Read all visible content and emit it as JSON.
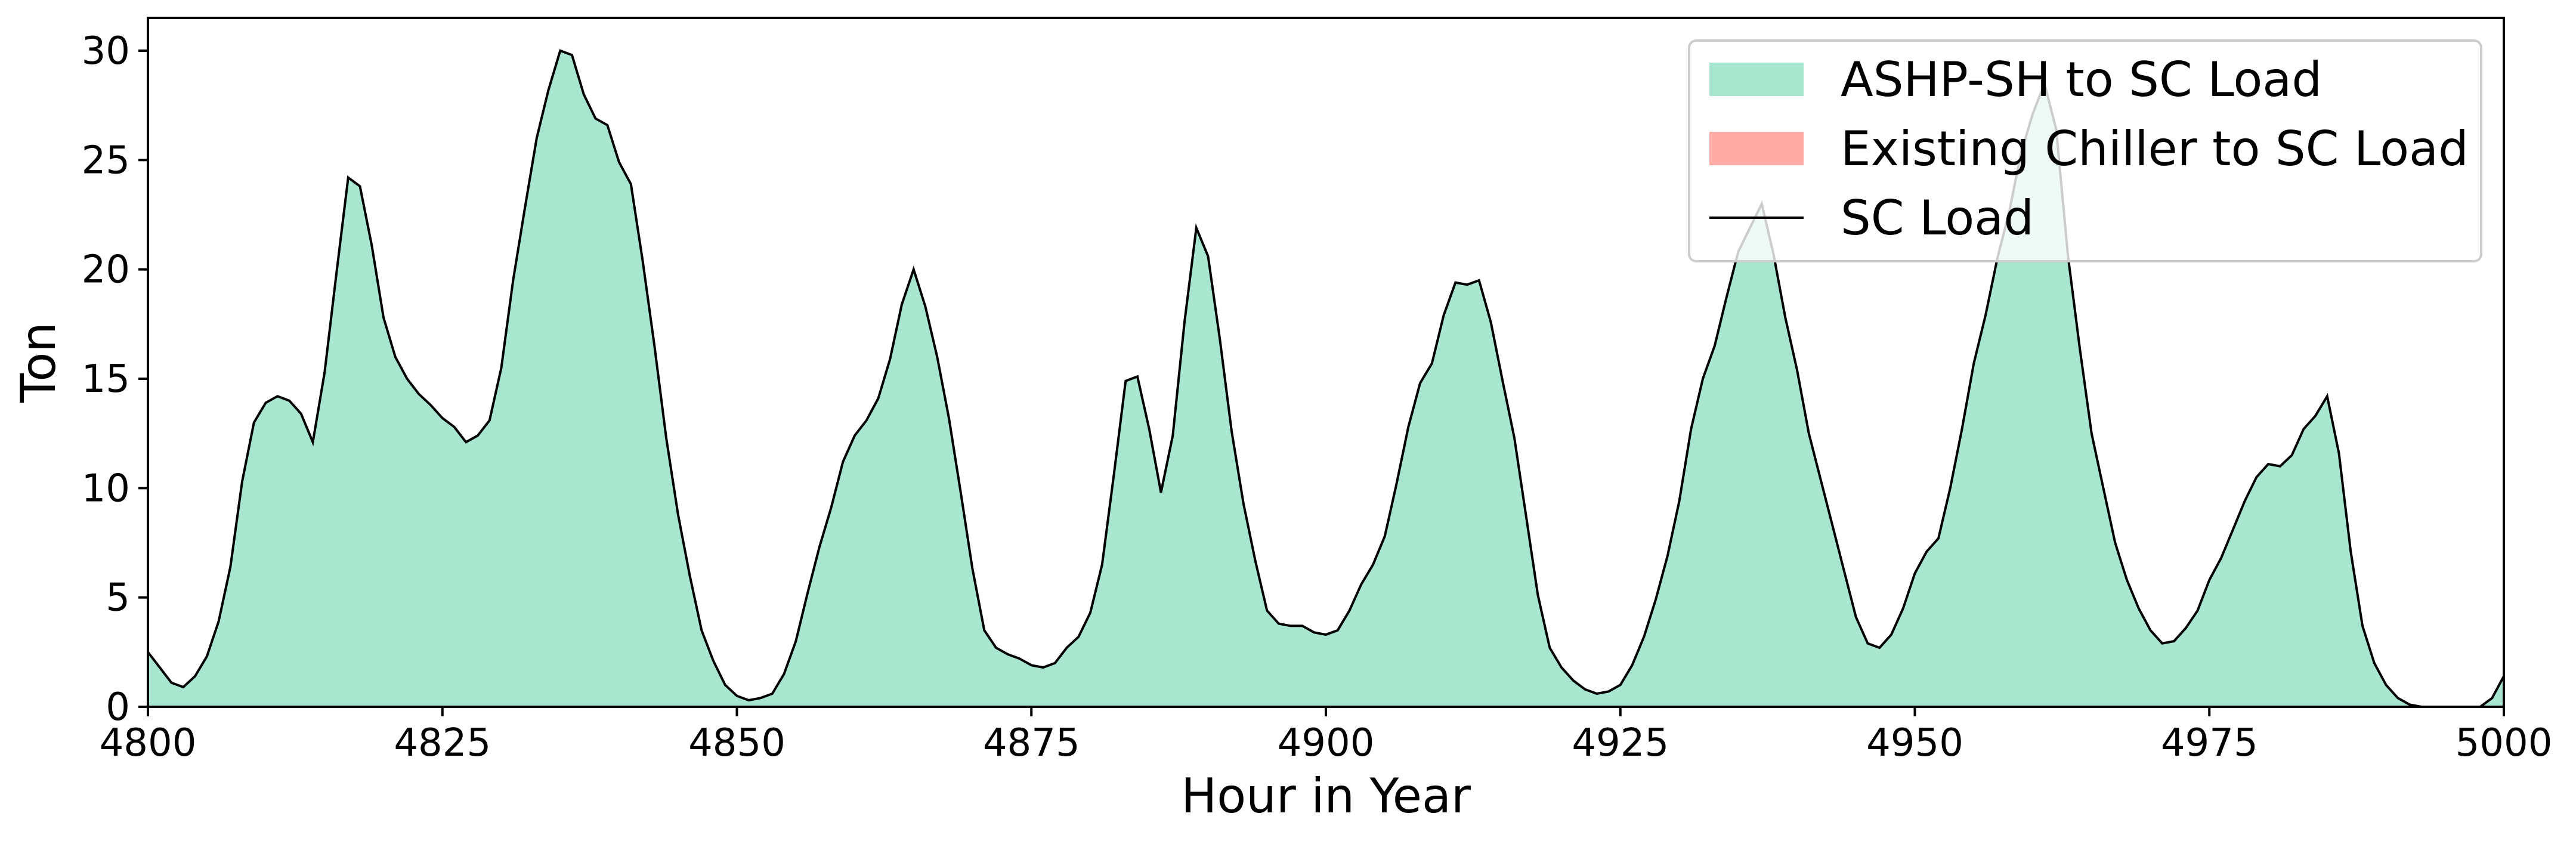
{
  "chart_data": {
    "type": "area",
    "xlabel": "Hour in Year",
    "ylabel": "Ton",
    "xlim": [
      4800,
      5000
    ],
    "ylim": [
      0,
      31.5
    ],
    "xticks": [
      4800,
      4825,
      4850,
      4875,
      4900,
      4925,
      4950,
      4975,
      5000
    ],
    "yticks": [
      0,
      5,
      10,
      15,
      20,
      25,
      30
    ],
    "grid": false,
    "legend_placement": "upper-right",
    "legend": [
      {
        "label": "ASHP-SH to SC Load",
        "kind": "patch",
        "color": "#a8e6cf"
      },
      {
        "label": "Existing Chiller to SC Load",
        "kind": "patch",
        "color": "#ffaaa5"
      },
      {
        "label": "SC Load",
        "kind": "line",
        "color": "#000000"
      }
    ],
    "x_start": 4800,
    "x_step": 1,
    "series": [
      {
        "name": "SC Load",
        "values": [
          2.5,
          1.8,
          1.1,
          0.9,
          1.4,
          2.3,
          3.9,
          6.4,
          10.3,
          13.0,
          13.9,
          14.2,
          14.0,
          13.4,
          12.1,
          15.3,
          19.8,
          24.2,
          23.8,
          21.1,
          17.8,
          16.0,
          15.0,
          14.3,
          13.8,
          13.2,
          12.8,
          12.1,
          12.4,
          13.1,
          15.5,
          19.5,
          22.8,
          26.0,
          28.2,
          30.0,
          29.8,
          28.0,
          26.9,
          26.6,
          24.9,
          23.9,
          20.4,
          16.5,
          12.3,
          8.8,
          6.0,
          3.5,
          2.1,
          1.0,
          0.5,
          0.3,
          0.4,
          0.6,
          1.5,
          3.0,
          5.2,
          7.3,
          9.1,
          11.2,
          12.4,
          13.1,
          14.1,
          15.9,
          18.4,
          20.0,
          18.3,
          16.0,
          13.2,
          9.8,
          6.3,
          3.5,
          2.7,
          2.4,
          2.2,
          1.9,
          1.8,
          2.0,
          2.7,
          3.2,
          4.3,
          6.5,
          10.6,
          14.9,
          15.1,
          12.7,
          9.8,
          12.4,
          17.6,
          21.9,
          20.6,
          16.8,
          12.6,
          9.3,
          6.7,
          4.4,
          3.8,
          3.7,
          3.7,
          3.4,
          3.3,
          3.5,
          4.4,
          5.6,
          6.5,
          7.8,
          10.2,
          12.8,
          14.8,
          15.7,
          17.9,
          19.4,
          19.3,
          19.5,
          17.6,
          14.9,
          12.3,
          8.7,
          5.1,
          2.7,
          1.8,
          1.2,
          0.8,
          0.6,
          0.7,
          1.0,
          1.9,
          3.2,
          4.9,
          6.9,
          9.4,
          12.7,
          15.0,
          16.5,
          18.7,
          20.8,
          21.9,
          23.0,
          20.7,
          17.8,
          15.4,
          12.5,
          10.4,
          8.3,
          6.2,
          4.1,
          2.9,
          2.7,
          3.3,
          4.5,
          6.1,
          7.1,
          7.7,
          10.0,
          12.7,
          15.7,
          17.9,
          20.5,
          22.6,
          25.3,
          27.1,
          28.5,
          26.4,
          20.6,
          16.4,
          12.5,
          10.0,
          7.5,
          5.8,
          4.5,
          3.5,
          2.9,
          3.0,
          3.6,
          4.4,
          5.8,
          6.8,
          8.1,
          9.4,
          10.5,
          11.1,
          11.0,
          11.5,
          12.7,
          13.3,
          14.2,
          11.6,
          7.1,
          3.7,
          2.0,
          1.0,
          0.4,
          0.1,
          0.0,
          0.0,
          0.0,
          0.0,
          0.0,
          0.0,
          0.4,
          1.4
        ]
      },
      {
        "name": "ASHP-SH to SC Load",
        "same_as": "SC Load"
      },
      {
        "name": "Existing Chiller to SC Load",
        "constant": 0
      }
    ]
  }
}
